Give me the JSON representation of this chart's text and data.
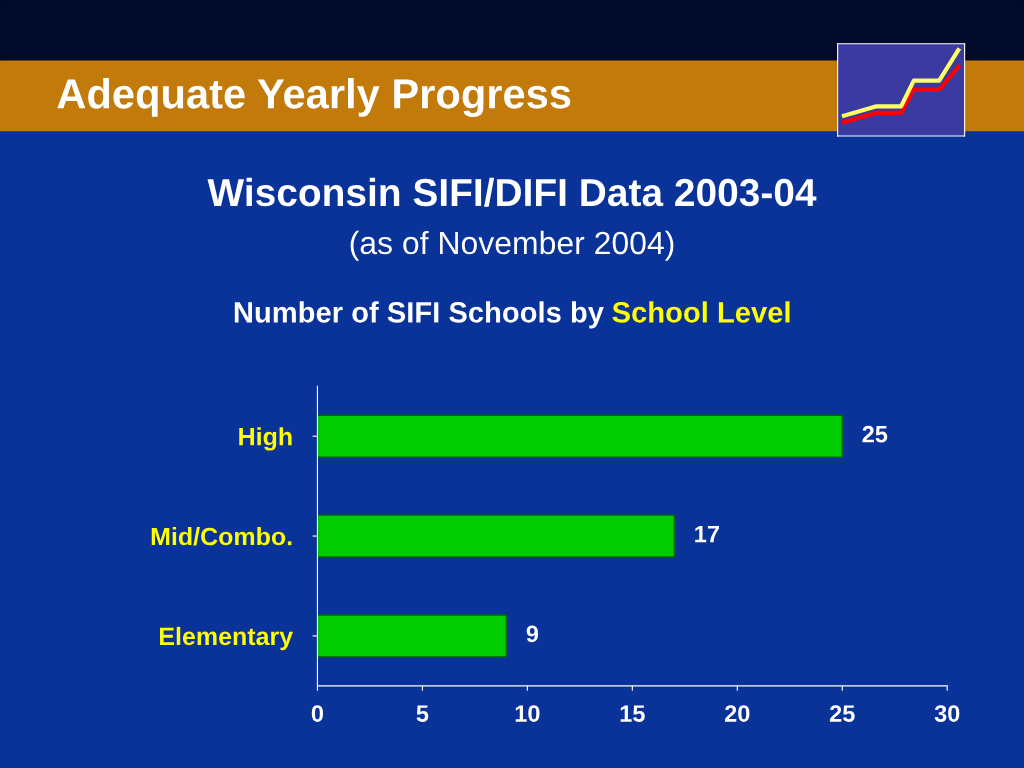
{
  "chart_data": {
    "type": "bar",
    "orientation": "horizontal",
    "title": "Adequate Yearly Progress",
    "subtitle": "Wisconsin SIFI/DIFI Data 2003-04\n(as of November 2004)",
    "annotations": [
      "Number of SIFI Schools by",
      "School Level"
    ],
    "categories": [
      "High",
      "Mid/Combo.",
      "Elementary"
    ],
    "values": [
      25,
      17,
      9
    ],
    "color": "#00cc00",
    "xlim": [
      0,
      30
    ],
    "xticks": [
      0,
      5,
      10,
      15,
      20,
      25,
      30
    ],
    "data_labels": true,
    "grid": false,
    "legend": false
  }
}
